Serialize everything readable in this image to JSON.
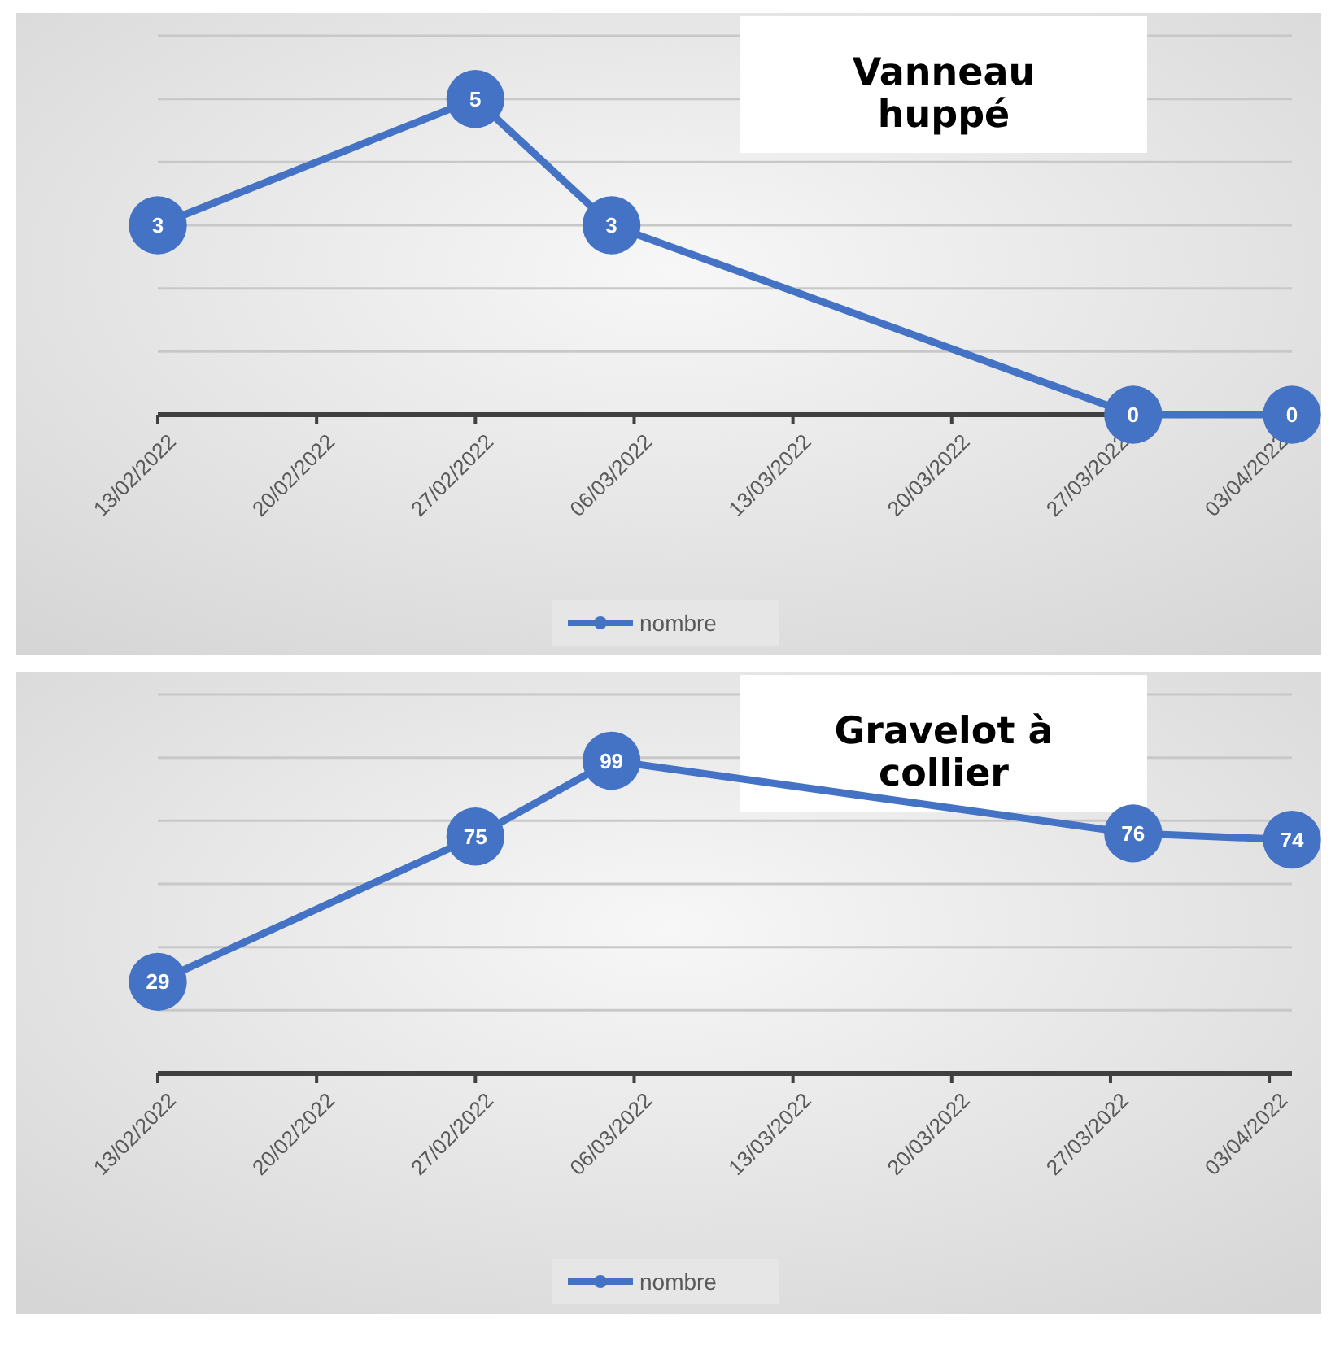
{
  "chart_data": [
    {
      "type": "line",
      "title": "Vanneau huppé",
      "x": [
        "2022-02-13",
        "2022-02-27",
        "2022-03-05",
        "2022-03-28",
        "2022-04-04"
      ],
      "series": [
        {
          "name": "nombre",
          "color": "#4472c4",
          "values": [
            3,
            5,
            3,
            0,
            0
          ]
        }
      ],
      "xlim": [
        "2022-02-13",
        "2022-04-04"
      ],
      "xticks": [
        {
          "value": "2022-02-13",
          "label": "13/02/2022"
        },
        {
          "value": "2022-02-20",
          "label": "20/02/2022"
        },
        {
          "value": "2022-02-27",
          "label": "27/02/2022"
        },
        {
          "value": "2022-03-06",
          "label": "06/03/2022"
        },
        {
          "value": "2022-03-13",
          "label": "13/03/2022"
        },
        {
          "value": "2022-03-20",
          "label": "20/03/2022"
        },
        {
          "value": "2022-03-27",
          "label": "27/03/2022"
        },
        {
          "value": "2022-04-03",
          "label": "03/04/2022"
        }
      ],
      "ylim": [
        0,
        6
      ],
      "yticks": [
        {
          "value": 0,
          "label": null
        },
        {
          "value": 1,
          "label": null
        },
        {
          "value": 2,
          "label": null
        },
        {
          "value": 3,
          "label": null
        },
        {
          "value": 4,
          "label": null
        },
        {
          "value": 5,
          "label": null
        },
        {
          "value": 6,
          "label": null
        }
      ],
      "tick_labels": "x",
      "grid": "y",
      "legend": "bottom",
      "marker": "circle",
      "data_labels": true
    },
    {
      "type": "line",
      "title": "Gravelot  à collier",
      "x": [
        "2022-02-13",
        "2022-02-27",
        "2022-03-05",
        "2022-03-28",
        "2022-04-04"
      ],
      "series": [
        {
          "name": "nombre",
          "color": "#4472c4",
          "values": [
            29,
            75,
            99,
            76,
            74
          ]
        }
      ],
      "xlim": [
        "2022-02-13",
        "2022-04-04"
      ],
      "xticks": [
        {
          "value": "2022-02-13",
          "label": "13/02/2022"
        },
        {
          "value": "2022-02-20",
          "label": "20/02/2022"
        },
        {
          "value": "2022-02-27",
          "label": "27/02/2022"
        },
        {
          "value": "2022-03-06",
          "label": "06/03/2022"
        },
        {
          "value": "2022-03-13",
          "label": "13/03/2022"
        },
        {
          "value": "2022-03-20",
          "label": "20/03/2022"
        },
        {
          "value": "2022-03-27",
          "label": "27/03/2022"
        },
        {
          "value": "2022-04-03",
          "label": "03/04/2022"
        }
      ],
      "ylim": [
        0,
        120
      ],
      "yticks": [
        {
          "value": 0,
          "label": null
        },
        {
          "value": 20,
          "label": null
        },
        {
          "value": 40,
          "label": null
        },
        {
          "value": 60,
          "label": null
        },
        {
          "value": 80,
          "label": null
        },
        {
          "value": 100,
          "label": null
        },
        {
          "value": 120,
          "label": null
        }
      ],
      "tick_labels": "x",
      "grid": "y",
      "legend": "bottom",
      "marker": "circle",
      "data_labels": true
    }
  ]
}
